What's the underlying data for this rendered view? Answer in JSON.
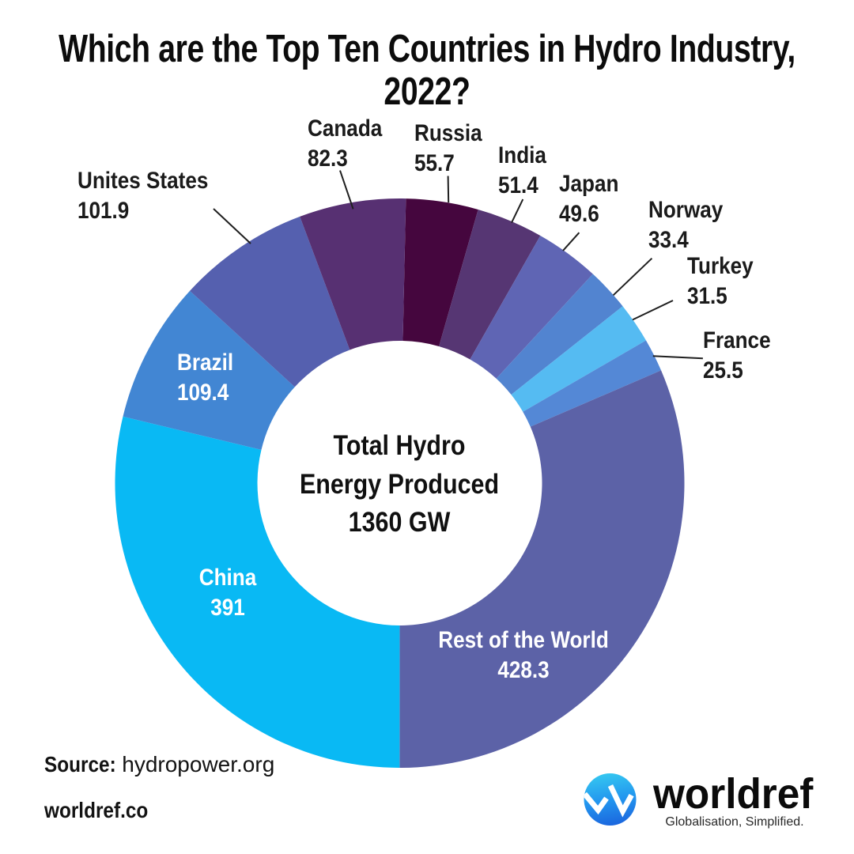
{
  "title": {
    "line1": "Which are the Top Ten Countries in Hydro Industry,",
    "line2": "2022?"
  },
  "chart_data": {
    "type": "pie",
    "subtype": "donut",
    "title": "Which are the Top Ten Countries in Hydro Industry, 2022?",
    "units": "GW",
    "total": 1360,
    "center_label_lines": [
      "Total Hydro",
      "Energy Produced",
      "1360 GW"
    ],
    "start_angle_deg": 1.25,
    "donut_hole_ratio": 0.5,
    "segments": [
      {
        "name": "Russia",
        "value": 55.7,
        "color": "#45063E",
        "label_position": "outside"
      },
      {
        "name": "India",
        "value": 51.4,
        "color": "#563673",
        "label_position": "outside"
      },
      {
        "name": "Japan",
        "value": 49.6,
        "color": "#5F65B4",
        "label_position": "outside"
      },
      {
        "name": "Norway",
        "value": 33.4,
        "color": "#5284D0",
        "label_position": "outside"
      },
      {
        "name": "Turkey",
        "value": 31.5,
        "color": "#55BBF2",
        "label_position": "outside"
      },
      {
        "name": "France",
        "value": 25.5,
        "color": "#5488D6",
        "label_position": "outside"
      },
      {
        "name": "Rest of the World",
        "value": 428.3,
        "color": "#5C62A7",
        "label_position": "inside"
      },
      {
        "name": "China",
        "value": 391,
        "color": "#09B9F4",
        "label_position": "inside"
      },
      {
        "name": "Brazil",
        "value": 109.4,
        "color": "#4286D3",
        "label_position": "inside"
      },
      {
        "name": "Unites States",
        "value": 101.9,
        "color": "#5560AF",
        "label_position": "outside"
      },
      {
        "name": "Canada",
        "value": 82.3,
        "color": "#573072",
        "label_position": "outside"
      }
    ]
  },
  "footer": {
    "source_label": "Source",
    "source_separator": ":",
    "source_value": "hydropower.org",
    "website": "worldref.co"
  },
  "logo": {
    "wordmark": "worldref",
    "tagline": "Globalisation, Simplified.",
    "circle_gradient_top": "#55CEF8",
    "circle_gradient_mid": "#2496EC",
    "circle_gradient_bottom": "#1B63DB"
  }
}
